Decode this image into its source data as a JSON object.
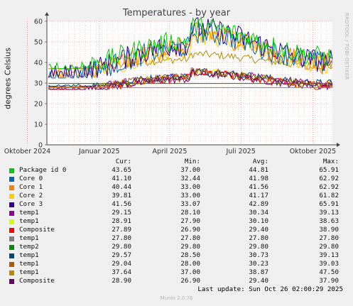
{
  "chart_data": {
    "type": "line",
    "title": "Temperatures - by year",
    "ylabel": "degrees Celsius",
    "side_label": "RRDTOOL / TOBI OETIKER",
    "ylim": [
      0,
      60
    ],
    "yticks": [
      0,
      10,
      20,
      30,
      40,
      50,
      60
    ],
    "x_tick_labels": [
      "Oktober 2024",
      "Januar 2025",
      "April 2025",
      "Juli 2025",
      "Oktober 2025"
    ],
    "x_range": [
      "2024-10-26",
      "2025-10-26"
    ],
    "x_tick_dates": [
      "2024-10-01",
      "2025-01-01",
      "2025-04-01",
      "2025-07-01",
      "2025-10-01"
    ],
    "grid": true,
    "columns": {
      "cur": "Cur:",
      "min": "Min:",
      "avg": "Avg:",
      "max": "Max:"
    },
    "series": [
      {
        "name": "Package id 0",
        "color": "#00cc00",
        "cur": "43.65",
        "min": "37.00",
        "avg": "44.81",
        "max": "65.91"
      },
      {
        "name": "Core 0",
        "color": "#0066b3",
        "cur": "41.10",
        "min": "32.44",
        "avg": "41.98",
        "max": "62.92"
      },
      {
        "name": "Core 1",
        "color": "#ff8000",
        "cur": "40.44",
        "min": "33.00",
        "avg": "41.56",
        "max": "62.92"
      },
      {
        "name": "Core 2",
        "color": "#ffcc00",
        "cur": "39.81",
        "min": "33.00",
        "avg": "41.17",
        "max": "61.82"
      },
      {
        "name": "Core 3",
        "color": "#330099",
        "cur": "41.56",
        "min": "33.07",
        "avg": "42.89",
        "max": "65.91"
      },
      {
        "name": "temp1",
        "color": "#990099",
        "cur": "29.15",
        "min": "28.10",
        "avg": "30.34",
        "max": "39.13"
      },
      {
        "name": "temp1",
        "color": "#ccff00",
        "cur": "28.91",
        "min": "27.90",
        "avg": "30.10",
        "max": "38.63"
      },
      {
        "name": "Composite",
        "color": "#ff0000",
        "cur": "27.89",
        "min": "26.90",
        "avg": "29.40",
        "max": "38.90"
      },
      {
        "name": "temp1",
        "color": "#808080",
        "cur": "27.80",
        "min": "27.80",
        "avg": "27.80",
        "max": "27.80"
      },
      {
        "name": "temp2",
        "color": "#008f00",
        "cur": "29.80",
        "min": "29.80",
        "avg": "29.80",
        "max": "29.80"
      },
      {
        "name": "temp1",
        "color": "#00487d",
        "cur": "29.57",
        "min": "28.50",
        "avg": "30.73",
        "max": "39.13"
      },
      {
        "name": "temp1",
        "color": "#b35a00",
        "cur": "29.04",
        "min": "28.00",
        "avg": "30.23",
        "max": "39.03"
      },
      {
        "name": "temp1",
        "color": "#b38f00",
        "cur": "37.64",
        "min": "37.00",
        "avg": "38.87",
        "max": "47.50"
      },
      {
        "name": "Composite",
        "color": "#6b006b",
        "cur": "28.90",
        "min": "26.90",
        "avg": "29.40",
        "max": "37.90"
      }
    ]
  },
  "footer": {
    "last_update": "Last update: Sun Oct 26 02:00:29 2025",
    "munin_version": "Munin 2.0.76"
  }
}
